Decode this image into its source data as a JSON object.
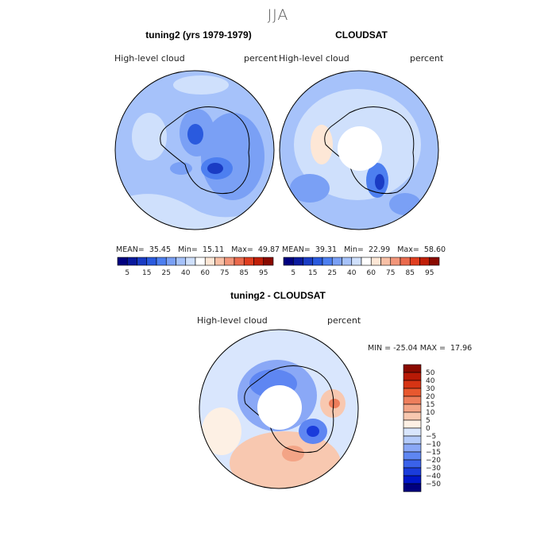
{
  "season": "JJA",
  "panel1": {
    "title": "tuning2 (yrs 1979-1979)",
    "variable": "High-level cloud",
    "units": "percent",
    "mean_label": "MEAN=",
    "mean": "35.45",
    "min_label": "Min=",
    "min": "15.11",
    "max_label": "Max=",
    "max": "49.87"
  },
  "panel2": {
    "title": "CLOUDSAT",
    "variable": "High-level cloud",
    "units": "percent",
    "mean_label": "MEAN=",
    "mean": "39.31",
    "min_label": "Min=",
    "min": "22.99",
    "max_label": "Max=",
    "max": "58.60"
  },
  "panel3": {
    "title": "tuning2 - CLOUDSAT",
    "variable": "High-level cloud",
    "units": "percent",
    "minmax_text": "MIN = -25.04 MAX =  17.96"
  },
  "colors": {
    "abs_scale": [
      "#00007f",
      "#0a1a9e",
      "#1a3cc4",
      "#2a5ade",
      "#4d7ff0",
      "#7aa0f5",
      "#a6c2fa",
      "#cfe0fc",
      "#ffffff",
      "#fde7d6",
      "#f8c0a6",
      "#f2967a",
      "#ea6a4d",
      "#e03e20",
      "#c01f08",
      "#8a0a00"
    ],
    "diff_scale": [
      "#00007f",
      "#0016c8",
      "#1a3cdb",
      "#3a62ea",
      "#5e86f2",
      "#8aa8f6",
      "#b4cbfa",
      "#d9e6fd",
      "#fdf0e4",
      "#f8c8b0",
      "#f3a486",
      "#ee7e5c",
      "#e8582f",
      "#d63414",
      "#b81a06",
      "#8a0a00"
    ]
  },
  "chart_data": [
    {
      "type": "heatmap",
      "title": "tuning2 (yrs 1979-1979)",
      "variable": "High-level cloud",
      "units": "percent",
      "projection": "south polar stereographic",
      "stats": {
        "mean": 35.45,
        "min": 15.11,
        "max": 49.87
      },
      "colorbar_ticks": [
        "5",
        "15",
        "25",
        "40",
        "60",
        "75",
        "85",
        "95"
      ]
    },
    {
      "type": "heatmap",
      "title": "CLOUDSAT",
      "variable": "High-level cloud",
      "units": "percent",
      "projection": "south polar stereographic",
      "stats": {
        "mean": 39.31,
        "min": 22.99,
        "max": 58.6
      },
      "colorbar_ticks": [
        "5",
        "15",
        "25",
        "40",
        "60",
        "75",
        "85",
        "95"
      ]
    },
    {
      "type": "heatmap",
      "title": "tuning2 - CLOUDSAT",
      "variable": "High-level cloud",
      "units": "percent",
      "projection": "south polar stereographic",
      "stats": {
        "min": -25.04,
        "max": 17.96
      },
      "colorbar_ticks": [
        "50",
        "40",
        "30",
        "20",
        "15",
        "10",
        "5",
        "0",
        "−5",
        "−10",
        "−15",
        "−20",
        "−30",
        "−40",
        "−50"
      ]
    }
  ]
}
